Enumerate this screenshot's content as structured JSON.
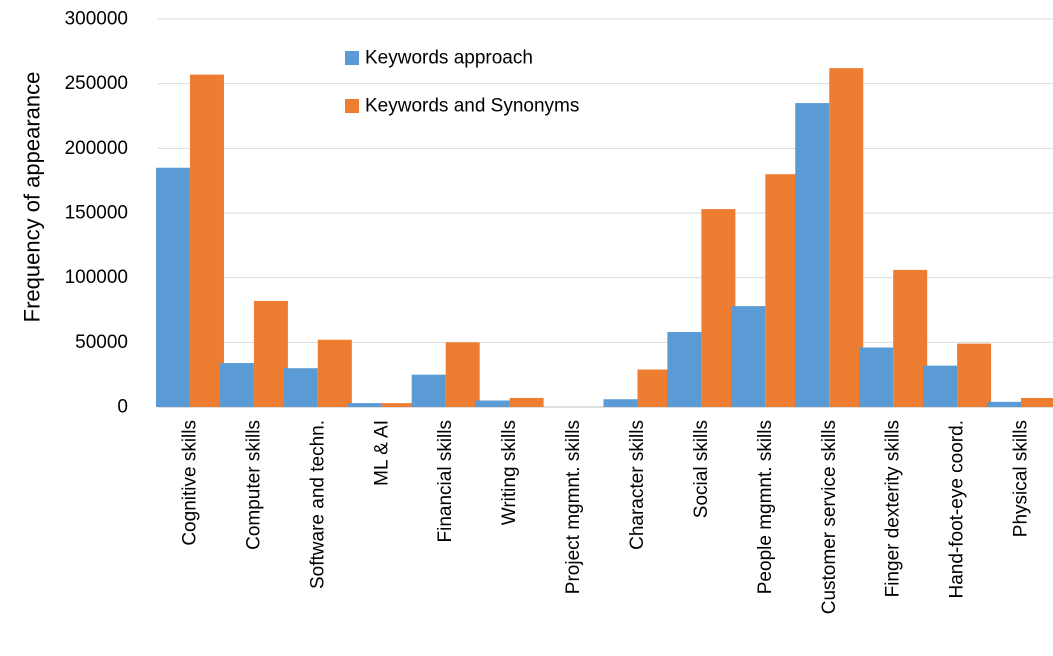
{
  "chart_data": {
    "type": "bar",
    "title": "",
    "xlabel": "",
    "ylabel": "Frequency of appearance",
    "ylim": [
      0,
      300000
    ],
    "yticks": [
      0,
      50000,
      100000,
      150000,
      200000,
      250000,
      300000
    ],
    "ytick_labels": [
      "0",
      "50000",
      "100000",
      "150000",
      "200000",
      "250000",
      "300000"
    ],
    "grid": true,
    "legend_position": "top-center",
    "categories": [
      "Cognitive skills",
      "Computer skills",
      "Software and techn.",
      "ML & AI",
      "Financial skills",
      "Writing skills",
      "Project mgmnt. skills",
      "Character skills",
      "Social skills",
      "People mgmnt. skills",
      "Customer service skills",
      "Finger dexterity skills",
      "Hand-foot-eye coord.",
      "Physical skills"
    ],
    "series": [
      {
        "name": "Keywords approach",
        "color": "#5b9bd5",
        "values": [
          185000,
          34000,
          30000,
          3000,
          25000,
          5000,
          0,
          6000,
          58000,
          78000,
          235000,
          46000,
          32000,
          4000
        ]
      },
      {
        "name": "Keywords and Synonyms",
        "color": "#ed7d31",
        "values": [
          257000,
          82000,
          52000,
          3000,
          50000,
          7000,
          0,
          29000,
          153000,
          180000,
          262000,
          106000,
          49000,
          7000
        ]
      }
    ]
  }
}
